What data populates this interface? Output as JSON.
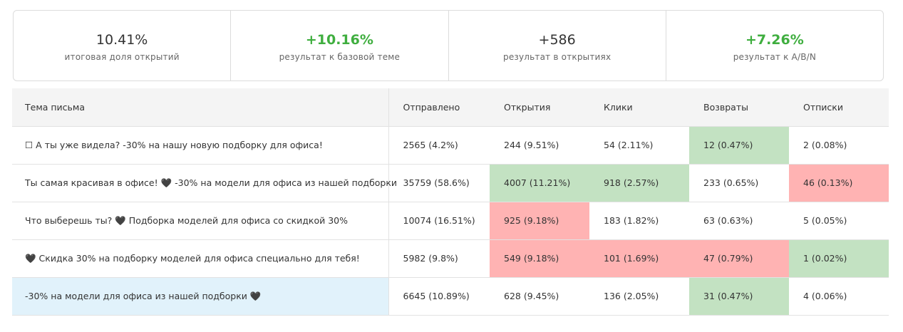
{
  "summary": [
    {
      "value": "10.41%",
      "label": "итоговая доля открытий",
      "positive": false
    },
    {
      "value": "+10.16%",
      "label": "результат к базовой теме",
      "positive": true
    },
    {
      "value": "+586",
      "label": "результат в открытиях",
      "positive": false
    },
    {
      "value": "+7.26%",
      "label": "результат к A/B/N",
      "positive": true
    }
  ],
  "table": {
    "headers": [
      "Тема письма",
      "Отправлено",
      "Открытия",
      "Клики",
      "Возвраты",
      "Отписки"
    ],
    "rows": [
      {
        "subject": "☐ А ты уже видела? -30% на нашу новую подборку для офиса!",
        "sent": "2565 (4.2%)",
        "opens": "244 (9.51%)",
        "clicks": "54 (2.11%)",
        "bounces": "12 (0.47%)",
        "unsubs": "2 (0.08%)"
      },
      {
        "subject": "Ты самая красивая в офисе! 🖤 -30% на модели для офиса из нашей подборки",
        "sent": "35759 (58.6%)",
        "opens": "4007 (11.21%)",
        "clicks": "918 (2.57%)",
        "bounces": "233 (0.65%)",
        "unsubs": "46 (0.13%)"
      },
      {
        "subject": "Что выберешь ты? 🖤 Подборка моделей для офиса со скидкой 30%",
        "sent": "10074 (16.51%)",
        "opens": "925 (9.18%)",
        "clicks": "183 (1.82%)",
        "bounces": "63 (0.63%)",
        "unsubs": "5 (0.05%)"
      },
      {
        "subject": "🖤 Скидка 30% на подборку моделей для офиса специально для тебя!",
        "sent": "5982 (9.8%)",
        "opens": "549 (9.18%)",
        "clicks": "101 (1.69%)",
        "bounces": "47 (0.79%)",
        "unsubs": "1 (0.02%)"
      },
      {
        "subject": "-30% на модели для офиса из нашей подборки 🖤",
        "sent": "6645 (10.89%)",
        "opens": "628 (9.45%)",
        "clicks": "136 (2.05%)",
        "bounces": "31 (0.47%)",
        "unsubs": "4 (0.06%)"
      }
    ]
  },
  "colors": {
    "positive_text": "#3fae3f",
    "good_cell": "#c3e2c2",
    "bad_cell": "#ffb3b3",
    "highlight_row": "#e1f2fb"
  }
}
